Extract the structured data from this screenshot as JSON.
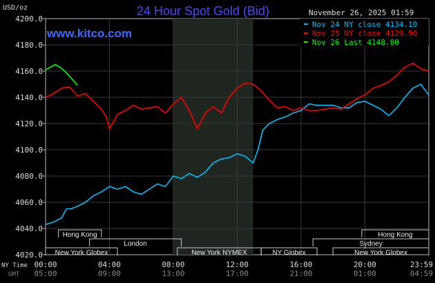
{
  "chart_data": {
    "type": "line",
    "title": "24 Hour Spot Gold (Bid)",
    "ylabel": "USD/oz",
    "watermark": "www.kitco.com",
    "timestamp": "November 26, 2025 01:59",
    "ylim": [
      4020,
      4200
    ],
    "yticks": [
      "4200.0",
      "4180.0",
      "4160.0",
      "4140.0",
      "4120.0",
      "4100.0",
      "4080.0",
      "4060.0",
      "4040.0",
      "4020.0"
    ],
    "grid": true,
    "legend_position": "top-right",
    "x_row_labels": {
      "ny": "NY Time",
      "gmt": "GMT"
    },
    "x_ticks_ny": [
      "00:00",
      "04:00",
      "08:00",
      "12:00",
      "16:00",
      "20:00",
      "23:59"
    ],
    "x_ticks_gmt": [
      "05:00",
      "09:00",
      "13:00",
      "17:00",
      "21:00",
      "01:00",
      "04:59"
    ],
    "x_tick_hours": [
      0,
      4,
      8,
      12,
      16,
      20,
      24
    ],
    "shaded_hours": [
      8,
      13
    ],
    "sessions": [
      {
        "label": "Hong Kong",
        "start": 0.8,
        "end": 3.5,
        "row": 0
      },
      {
        "label": "London",
        "start": 2.75,
        "end": 8.5,
        "row": 1
      },
      {
        "label": "New York Globex",
        "start": 0,
        "end": 4.5,
        "row": 2
      },
      {
        "label": "New York NYMEX",
        "start": 8.25,
        "end": 13.5,
        "row": 2
      },
      {
        "label": "NY Globex",
        "start": 13.5,
        "end": 17,
        "row": 2
      },
      {
        "label": "Hong Kong",
        "start": 19.8,
        "end": 24,
        "row": 0
      },
      {
        "label": "Sydney",
        "start": 16.75,
        "end": 24,
        "row": 1
      },
      {
        "label": "New York Globex",
        "start": 18,
        "end": 24,
        "row": 2
      }
    ],
    "series": [
      {
        "name": "Nov 24 NY close 4134.10",
        "color": "#00bfff",
        "x": [
          0,
          0.5,
          1.0,
          1.3,
          1.6,
          2.0,
          2.5,
          3.0,
          3.5,
          4.0,
          4.5,
          5.0,
          5.5,
          6.0,
          6.5,
          7.0,
          7.5,
          8.0,
          8.5,
          9.0,
          9.5,
          10.0,
          10.5,
          11.0,
          11.5,
          12.0,
          12.5,
          13.0,
          13.3,
          13.6,
          14.0,
          14.5,
          15.0,
          15.5,
          16.0,
          16.5,
          17.0,
          17.5,
          18.0,
          18.5,
          19.0,
          19.5,
          20.0,
          20.5,
          21.0,
          21.5,
          22.0,
          22.5,
          23.0,
          23.5,
          23.98
        ],
        "values": [
          4043,
          4045,
          4048,
          4055,
          4055,
          4057,
          4060,
          4065,
          4068,
          4072,
          4070,
          4072,
          4068,
          4066,
          4070,
          4074,
          4072,
          4080,
          4078,
          4082,
          4079,
          4083,
          4090,
          4093,
          4094,
          4097,
          4095,
          4090,
          4100,
          4115,
          4120,
          4123,
          4125,
          4128,
          4130,
          4135,
          4134,
          4134,
          4134,
          4132,
          4132,
          4136,
          4137,
          4134,
          4131,
          4126,
          4132,
          4140,
          4147,
          4150,
          4142
        ]
      },
      {
        "name": "Nov 25 NY close 4129.90",
        "color": "#ff0000",
        "x": [
          0,
          0.5,
          1.0,
          1.5,
          2.0,
          2.5,
          3.0,
          3.5,
          3.8,
          4.0,
          4.5,
          5.0,
          5.5,
          6.0,
          6.5,
          7.0,
          7.5,
          8.0,
          8.5,
          9.0,
          9.5,
          10.0,
          10.5,
          11.0,
          11.5,
          12.0,
          12.5,
          13.0,
          13.5,
          14.0,
          14.5,
          15.0,
          15.5,
          16.0,
          16.5,
          17.0,
          17.5,
          18.0,
          18.5,
          19.0,
          19.5,
          20.0,
          20.5,
          21.0,
          21.5,
          22.0,
          22.5,
          23.0,
          23.5,
          23.98
        ],
        "values": [
          4140,
          4143,
          4147,
          4148,
          4141,
          4143,
          4137,
          4131,
          4125,
          4116,
          4127,
          4130,
          4134,
          4131,
          4132,
          4133,
          4128,
          4135,
          4140,
          4130,
          4116,
          4128,
          4133,
          4128,
          4140,
          4147,
          4151,
          4150,
          4145,
          4138,
          4132,
          4133,
          4130,
          4132,
          4130,
          4130,
          4131,
          4132,
          4131,
          4135,
          4139,
          4142,
          4147,
          4149,
          4152,
          4157,
          4163,
          4166,
          4162,
          4160
        ]
      },
      {
        "name": "Nov 26 Last 4148.80",
        "color": "#00ff00",
        "x": [
          0,
          0.3,
          0.6,
          0.9,
          1.2,
          1.5,
          1.8,
          2.0
        ],
        "values": [
          4161,
          4163,
          4165,
          4163,
          4160,
          4156,
          4152,
          4149
        ]
      }
    ]
  }
}
